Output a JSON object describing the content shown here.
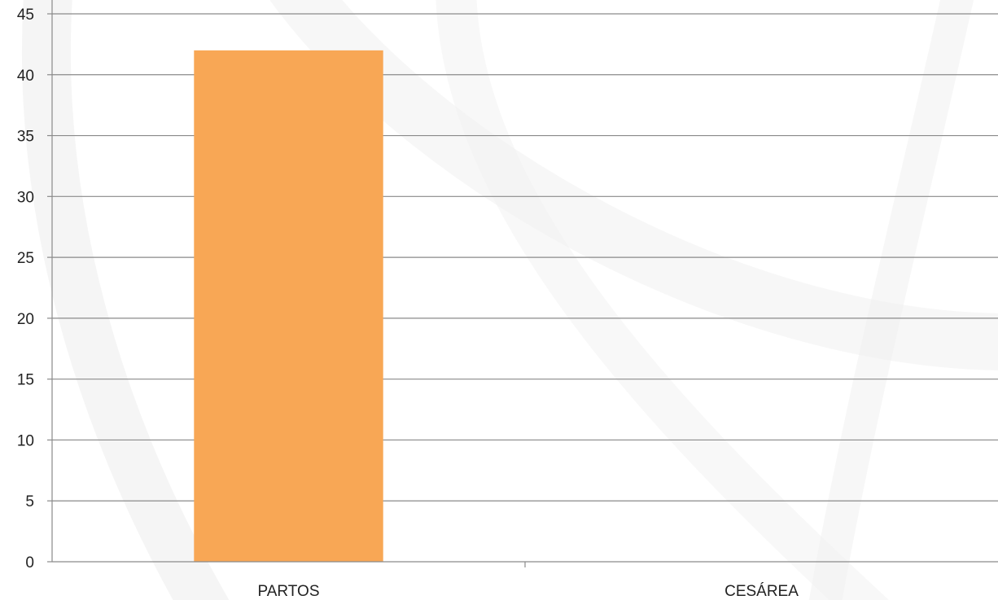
{
  "chart_data": {
    "type": "bar",
    "title": "",
    "xlabel": "",
    "ylabel": "",
    "categories": [
      "PARTOS",
      "CESÁREA"
    ],
    "values": [
      42,
      0
    ],
    "ylim": [
      0,
      45
    ],
    "yticks": [
      0,
      5,
      10,
      15,
      20,
      25,
      30,
      35,
      40,
      45
    ],
    "grid": true,
    "legend": "none"
  },
  "colors": {
    "bar": "#F8A755",
    "grid": "#8a8a8a",
    "axis": "#8a8a8a",
    "text": "#222222",
    "swoosh": "#e9e9e9"
  }
}
